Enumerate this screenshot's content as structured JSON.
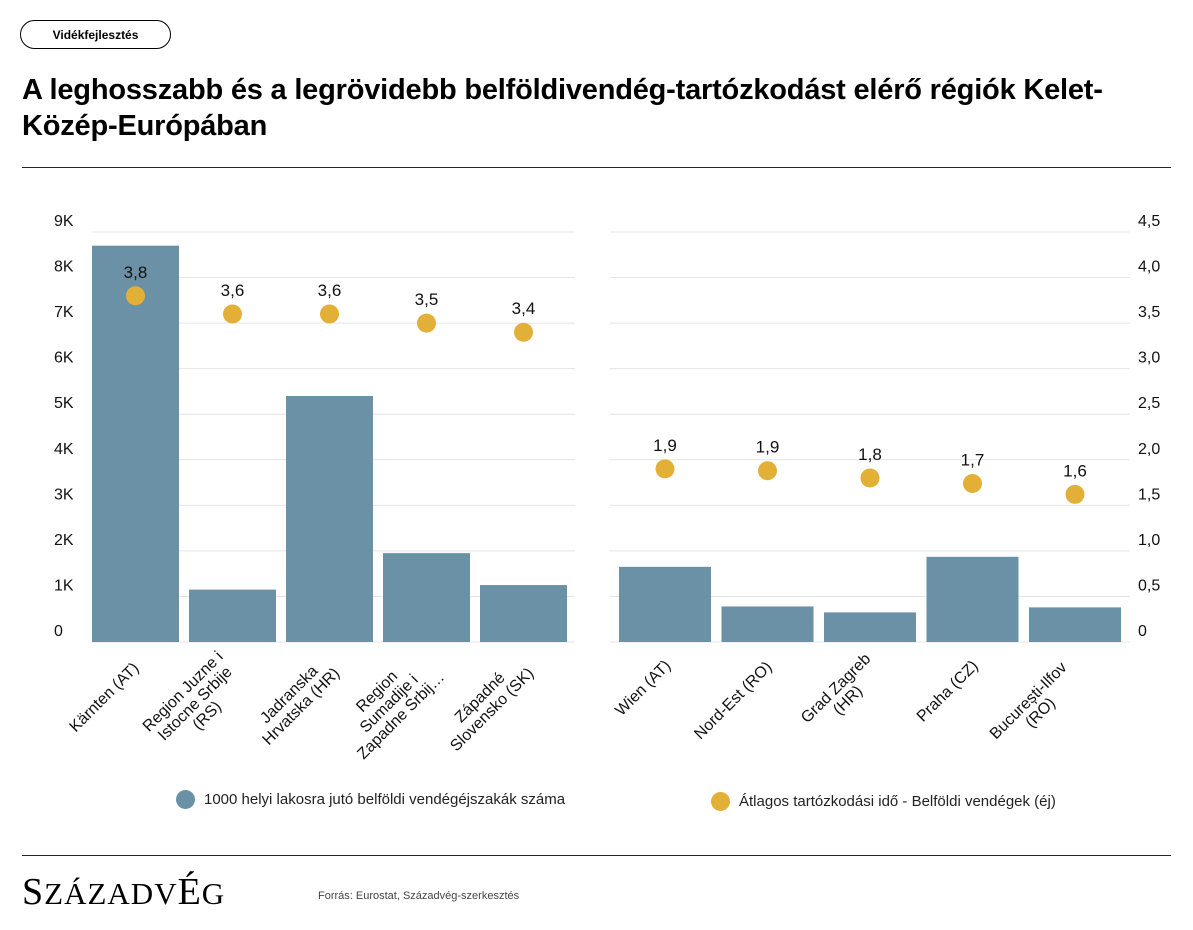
{
  "header": {
    "tag_label": "Vidékfejlesztés",
    "title": "A leghosszabb és a legrövidebb belföldivendég-tartózkodást elérő régiók Kelet-Közép-Európában"
  },
  "colors": {
    "bar": "#6a91a6",
    "dot": "#e2b037",
    "grid": "#e4e4e4",
    "text": "#000000"
  },
  "chart_data": [
    {
      "type": "bar",
      "name": "leghosszabb",
      "categories": [
        "Kärnten (AT)",
        "Region Juzne i Istocne Srbije (RS)",
        "Jadranska Hrvatska (HR)",
        "Region Sumadije i Zapadne Srbij…",
        "Západné Slovensko (SK)"
      ],
      "category_lines": [
        [
          "Kärnten (AT)"
        ],
        [
          "Region Juzne i",
          "Istocne Srbije",
          "(RS)"
        ],
        [
          "Jadranska",
          "Hrvatska (HR)"
        ],
        [
          "Region",
          "Sumadije i",
          "Zapadne Srbij…"
        ],
        [
          "Západné",
          "Slovensko (SK)"
        ]
      ],
      "series": [
        {
          "name": "1000 helyi lakosra jutó belföldi vendégéjszakák száma",
          "axis": "left",
          "values": [
            8700,
            1150,
            5400,
            1950,
            1250
          ]
        },
        {
          "name": "Átlagos tartózkodási idő - Belföldi vendégek (éj)",
          "axis": "right",
          "values": [
            3.8,
            3.6,
            3.6,
            3.5,
            3.4
          ],
          "labels": [
            "3,8",
            "3,6",
            "3,6",
            "3,5",
            "3,4"
          ]
        }
      ],
      "y_left": {
        "ylim": [
          0,
          9000
        ],
        "ticks": [
          0,
          1000,
          2000,
          3000,
          4000,
          5000,
          6000,
          7000,
          8000,
          9000
        ],
        "tick_labels": [
          "0",
          "1K",
          "2K",
          "3K",
          "4K",
          "5K",
          "6K",
          "7K",
          "8K",
          "9K"
        ]
      },
      "y_right": {
        "ylim": [
          0,
          4.5
        ]
      },
      "grid": true
    },
    {
      "type": "bar",
      "name": "legrövidebb",
      "categories": [
        "Wien (AT)",
        "Nord-Est (RO)",
        "Grad Zagreb (HR)",
        "Praha (CZ)",
        "București-Ilfov (RO)"
      ],
      "category_lines": [
        [
          "Wien (AT)"
        ],
        [
          "Nord-Est (RO)"
        ],
        [
          "Grad Zagreb",
          "(HR)"
        ],
        [
          "Praha (CZ)"
        ],
        [
          "București-Ilfov",
          "(RO)"
        ]
      ],
      "series": [
        {
          "name": "1000 helyi lakosra jutó belföldi vendégéjszakák száma",
          "axis": "left",
          "values": [
            1650,
            780,
            650,
            1870,
            760
          ]
        },
        {
          "name": "Átlagos tartózkodási idő - Belföldi vendégek (éj)",
          "axis": "right",
          "values": [
            1.9,
            1.88,
            1.8,
            1.74,
            1.62
          ],
          "labels": [
            "1,9",
            "1,9",
            "1,8",
            "1,7",
            "1,6"
          ]
        }
      ],
      "y_left": {
        "ylim": [
          0,
          9000
        ]
      },
      "y_right": {
        "ylim": [
          0,
          4.5
        ],
        "ticks": [
          0,
          0.5,
          1,
          1.5,
          2,
          2.5,
          3,
          3.5,
          4,
          4.5
        ],
        "tick_labels": [
          "0",
          "0,5",
          "1,0",
          "1,5",
          "2,0",
          "2,5",
          "3,0",
          "3,5",
          "4,0",
          "4,5"
        ]
      },
      "grid": true
    }
  ],
  "legend": {
    "bars_label": "1000 helyi lakosra jutó belföldi vendégéjszakák száma",
    "dots_label": "Átlagos tartózkodási idő - Belföldi vendégek (éj)"
  },
  "footer": {
    "logo_text": "SZÁZADVÉG",
    "source": "Forrás: Eurostat, Századvég-szerkesztés"
  }
}
